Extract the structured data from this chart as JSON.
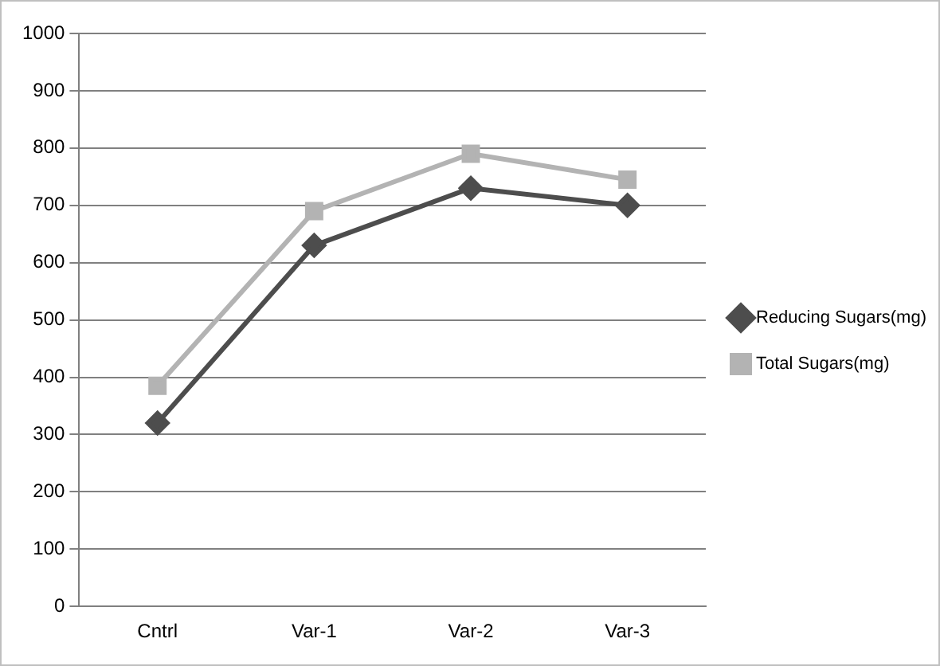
{
  "chart_data": {
    "type": "line",
    "categories": [
      "Cntrl",
      "Var-1",
      "Var-2",
      "Var-3"
    ],
    "series": [
      {
        "name": "Reducing Sugars(mg)",
        "color": "#4d4d4d",
        "marker": "diamond",
        "values": [
          320,
          630,
          730,
          700
        ]
      },
      {
        "name": "Total Sugars(mg)",
        "color": "#b3b3b3",
        "marker": "square",
        "values": [
          385,
          690,
          790,
          745
        ]
      }
    ],
    "ylim": [
      0,
      1000
    ],
    "yticks": [
      0,
      100,
      200,
      300,
      400,
      500,
      600,
      700,
      800,
      900,
      1000
    ],
    "grid": "y",
    "legend": "right",
    "line_style": "solid"
  }
}
